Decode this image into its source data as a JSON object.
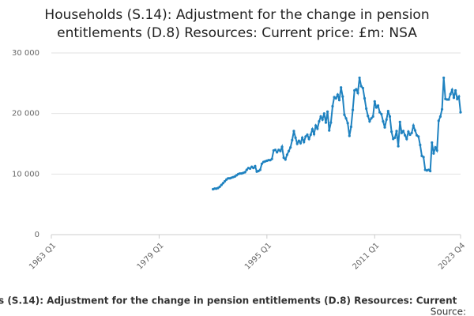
{
  "chart_data": {
    "type": "line",
    "title": [
      "Households (S.14): Adjustment for the change in pension",
      "entitlements (D.8) Resources: Current price: £m: NSA"
    ],
    "footer": "s (S.14): Adjustment for the change in pension entitlements (D.8) Resources: Current",
    "source": "Source:",
    "xlim": [
      1963,
      2023.75
    ],
    "xticks": [
      {
        "value": 1963,
        "label": "1963 Q1"
      },
      {
        "value": 1979,
        "label": "1979 Q1"
      },
      {
        "value": 1995,
        "label": "1995 Q1"
      },
      {
        "value": 2011,
        "label": "2011 Q1"
      },
      {
        "value": 2023.75,
        "label": "2023 Q4"
      }
    ],
    "ylim": [
      0,
      30000
    ],
    "yticks": [
      0,
      {
        "value": 10000,
        "label": "10 000"
      },
      {
        "value": 20000,
        "label": "20 000"
      },
      {
        "value": 30000,
        "label": "30 000"
      }
    ],
    "grid": true,
    "color": "#1f82c0",
    "x": [
      1987,
      1987.25,
      1987.5,
      1987.75,
      1988,
      1988.25,
      1988.5,
      1988.75,
      1989,
      1989.25,
      1989.5,
      1989.75,
      1990,
      1990.25,
      1990.5,
      1990.75,
      1991,
      1991.25,
      1991.5,
      1991.75,
      1992,
      1992.25,
      1992.5,
      1992.75,
      1993,
      1993.25,
      1993.5,
      1993.75,
      1994,
      1994.25,
      1994.5,
      1994.75,
      1995,
      1995.25,
      1995.5,
      1995.75,
      1996,
      1996.25,
      1996.5,
      1996.75,
      1997,
      1997.25,
      1997.5,
      1997.75,
      1998,
      1998.25,
      1998.5,
      1998.75,
      1999,
      1999.25,
      1999.5,
      1999.75,
      2000,
      2000.25,
      2000.5,
      2000.75,
      2001,
      2001.25,
      2001.5,
      2001.75,
      2002,
      2002.25,
      2002.5,
      2002.75,
      2003,
      2003.25,
      2003.5,
      2003.75,
      2004,
      2004.25,
      2004.5,
      2004.75,
      2005,
      2005.25,
      2005.5,
      2005.75,
      2006,
      2006.25,
      2006.5,
      2006.75,
      2007,
      2007.25,
      2007.5,
      2007.75,
      2008,
      2008.25,
      2008.5,
      2008.75,
      2009,
      2009.25,
      2009.5,
      2009.75,
      2010,
      2010.25,
      2010.5,
      2010.75,
      2011,
      2011.25,
      2011.5,
      2011.75,
      2012,
      2012.25,
      2012.5,
      2012.75,
      2013,
      2013.25,
      2013.5,
      2013.75,
      2014,
      2014.25,
      2014.5,
      2014.75,
      2015,
      2015.25,
      2015.5,
      2015.75,
      2016,
      2016.25,
      2016.5,
      2016.75,
      2017,
      2017.25,
      2017.5,
      2017.75,
      2018,
      2018.25,
      2018.5,
      2018.75,
      2019,
      2019.25,
      2019.5,
      2019.75,
      2020,
      2020.25,
      2020.5,
      2020.75,
      2021,
      2021.25,
      2021.5,
      2021.75,
      2022,
      2022.25,
      2022.5,
      2022.75,
      2023,
      2023.25,
      2023.5,
      2023.75
    ],
    "values": [
      7500,
      7600,
      7600,
      7700,
      7900,
      8200,
      8500,
      8800,
      9100,
      9300,
      9300,
      9400,
      9500,
      9600,
      9800,
      10000,
      10100,
      10100,
      10200,
      10300,
      10700,
      11000,
      10900,
      11200,
      11000,
      11300,
      10400,
      10500,
      10700,
      11700,
      12000,
      12100,
      12200,
      12300,
      12300,
      12500,
      13900,
      14000,
      13600,
      14000,
      13800,
      14500,
      12700,
      12400,
      13200,
      13800,
      14400,
      15600,
      17100,
      16000,
      15000,
      15500,
      15100,
      16000,
      15300,
      16200,
      16500,
      15800,
      16500,
      17400,
      16600,
      18000,
      17500,
      18700,
      19500,
      19000,
      20000,
      18500,
      20300,
      17200,
      18500,
      21200,
      22700,
      22500,
      23100,
      22200,
      24300,
      22800,
      19800,
      19200,
      18400,
      16300,
      17800,
      20600,
      23800,
      24000,
      23400,
      25900,
      24500,
      24200,
      22500,
      20800,
      19600,
      18700,
      19200,
      19500,
      22000,
      21000,
      21300,
      20200,
      19900,
      18700,
      17700,
      19000,
      20400,
      19500,
      17000,
      15800,
      16000,
      17100,
      14600,
      18600,
      16800,
      17100,
      16400,
      15800,
      17000,
      16500,
      16800,
      18000,
      17200,
      16400,
      16200,
      14800,
      13000,
      12800,
      10700,
      10600,
      10700,
      10500,
      15200,
      13400,
      14400,
      13900,
      18800,
      19500,
      20700,
      25900,
      22400,
      22300,
      22300,
      23200,
      23900,
      22600,
      23800,
      22400,
      22800,
      20200
    ]
  }
}
